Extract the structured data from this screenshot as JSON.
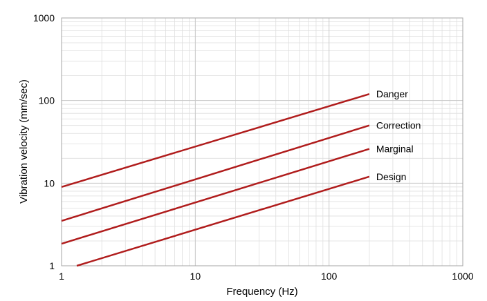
{
  "chart_data": {
    "type": "line",
    "title": "",
    "xlabel": "Frequency (Hz)",
    "ylabel": "Vibration velocity (mm/sec)",
    "x_scale": "log",
    "y_scale": "log",
    "xlim": [
      1,
      1000
    ],
    "ylim": [
      1,
      1000
    ],
    "xticks": [
      1,
      10,
      100,
      1000
    ],
    "xtick_labels": [
      "1",
      "10",
      "100",
      "1000"
    ],
    "yticks": [
      1,
      10,
      100,
      1000
    ],
    "ytick_labels": [
      "1",
      "10",
      "100",
      "1000"
    ],
    "grid": true,
    "legend": "none",
    "line_color": "#b01c1c",
    "series": [
      {
        "name": "Danger",
        "x": [
          1,
          200
        ],
        "y": [
          9,
          120
        ]
      },
      {
        "name": "Correction",
        "x": [
          1,
          200
        ],
        "y": [
          3.5,
          50
        ]
      },
      {
        "name": "Marginal",
        "x": [
          1,
          200
        ],
        "y": [
          1.85,
          26
        ]
      },
      {
        "name": "Design",
        "x": [
          1.3,
          200
        ],
        "y": [
          1.0,
          12
        ]
      }
    ]
  }
}
